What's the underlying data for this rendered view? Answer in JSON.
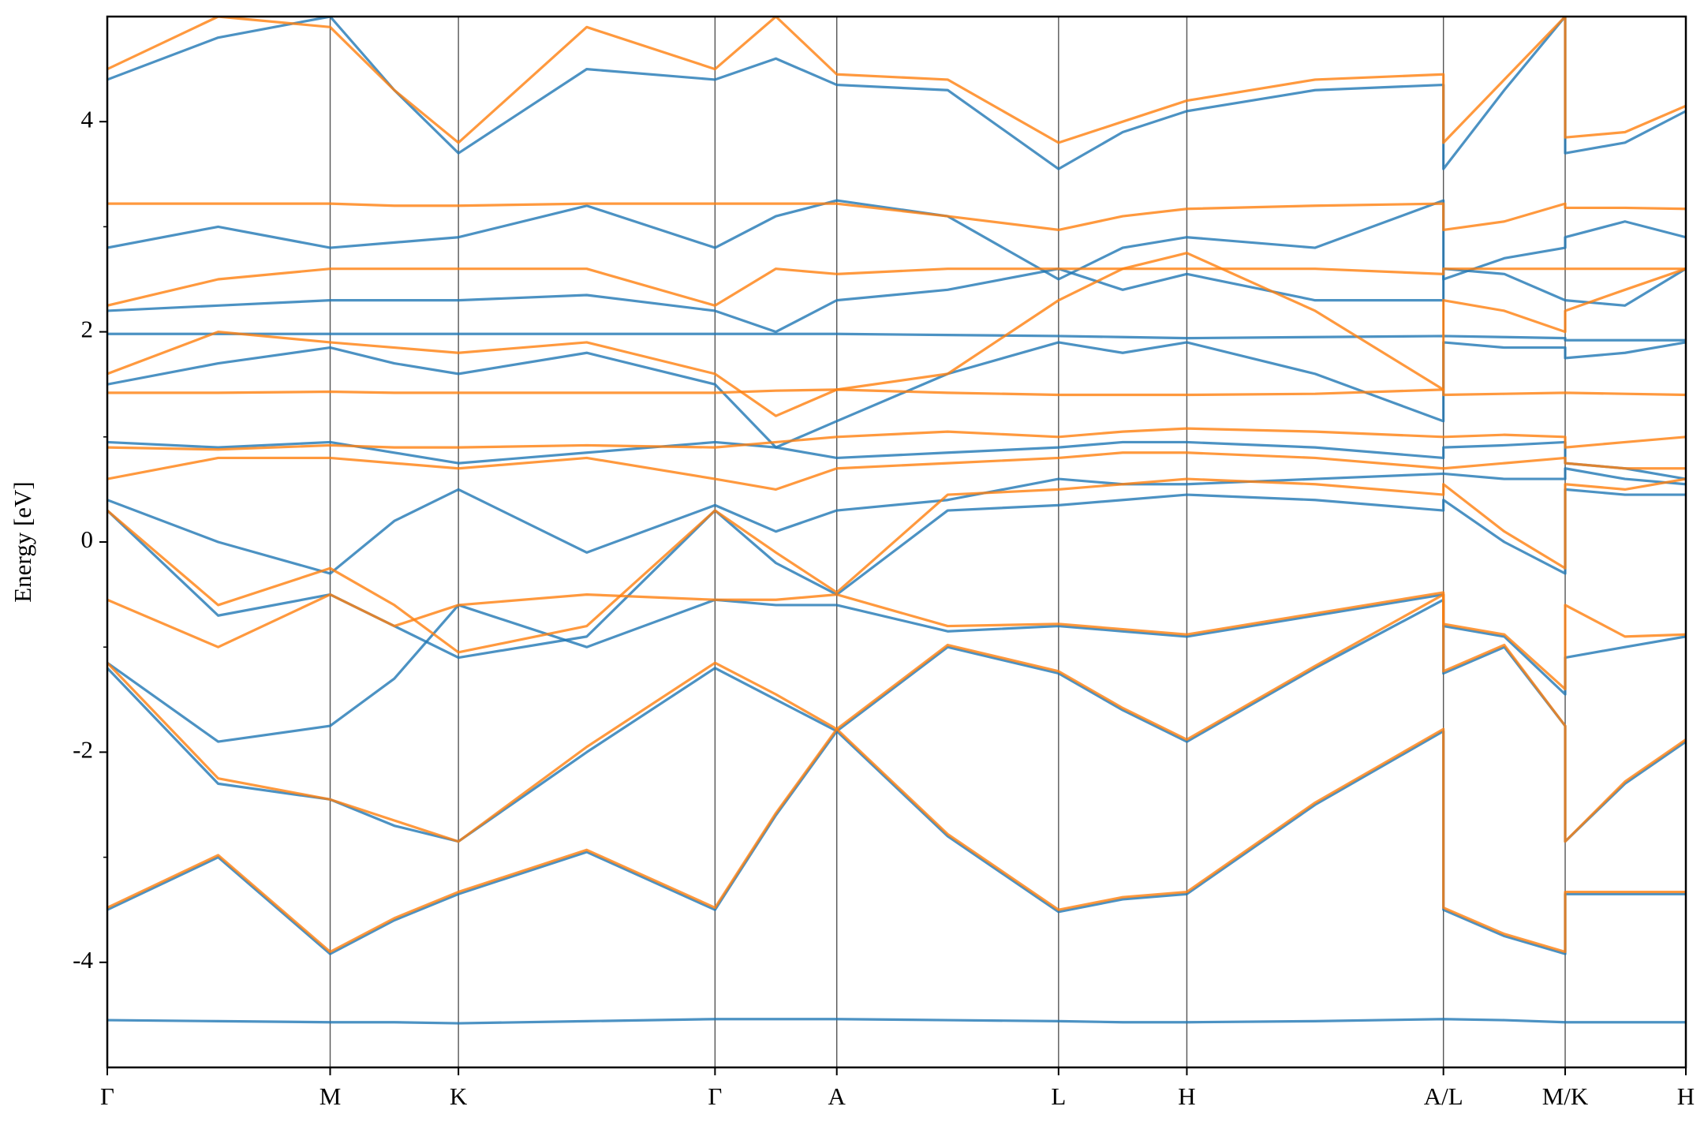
{
  "chart_data": {
    "type": "line",
    "y_label": "Energy [eV]",
    "xlim": [
      0,
      14.52
    ],
    "ylim": [
      -5,
      5
    ],
    "xticks": [
      {
        "value": 0,
        "label": "Γ"
      },
      {
        "value": 2.05,
        "label": "M"
      },
      {
        "value": 3.23,
        "label": "K"
      },
      {
        "value": 5.59,
        "label": "Γ"
      },
      {
        "value": 6.71,
        "label": "A"
      },
      {
        "value": 8.75,
        "label": "L"
      },
      {
        "value": 9.93,
        "label": "H"
      },
      {
        "value": 12.29,
        "label": "A/L"
      },
      {
        "value": 13.41,
        "label": "M/K"
      },
      {
        "value": 14.52,
        "label": "H"
      }
    ],
    "yticks": [
      -4,
      -2,
      0,
      2,
      4
    ],
    "yminorticks": [
      -3,
      -1,
      1,
      3
    ],
    "grid": true,
    "x": [
      0,
      1.02,
      2.05,
      2.64,
      3.23,
      4.41,
      5.59,
      6.15,
      6.71,
      7.73,
      8.75,
      9.34,
      9.93,
      11.11,
      12.29,
      12.29,
      12.85,
      13.41,
      13.41,
      13.96,
      14.52
    ],
    "series": [
      {
        "color": "#1f77b4",
        "values": [
          -4.55,
          -4.56,
          -4.57,
          -4.57,
          -4.58,
          -4.56,
          -4.54,
          -4.54,
          -4.54,
          -4.55,
          -4.56,
          -4.57,
          -4.57,
          -4.56,
          -4.54,
          -4.54,
          -4.55,
          -4.57,
          -4.57,
          -4.57,
          -4.57
        ]
      },
      {
        "color": "#1f77b4",
        "values": [
          -3.5,
          -3.0,
          -3.92,
          -3.6,
          -3.35,
          -2.95,
          -3.5,
          -2.6,
          -1.8,
          -2.8,
          -3.52,
          -3.4,
          -3.35,
          -2.5,
          -1.8,
          -3.5,
          -3.75,
          -3.92,
          -3.35,
          -3.35,
          -3.35
        ]
      },
      {
        "color": "#1f77b4",
        "values": [
          -1.2,
          -2.3,
          -2.45,
          -2.7,
          -2.85,
          -2.0,
          -1.2,
          -1.5,
          -1.8,
          -1.0,
          -1.25,
          -1.6,
          -1.9,
          -1.2,
          -0.55,
          -1.25,
          -1.0,
          -1.75,
          -2.85,
          -2.3,
          -1.9
        ]
      },
      {
        "color": "#1f77b4",
        "values": [
          -1.15,
          -1.9,
          -1.75,
          -1.3,
          -0.6,
          -1.0,
          -0.55,
          -0.6,
          -0.6,
          -0.85,
          -0.8,
          -0.85,
          -0.9,
          -0.7,
          -0.5,
          -0.8,
          -0.9,
          -1.45,
          -1.1,
          -1.0,
          -0.9
        ]
      },
      {
        "color": "#1f77b4",
        "values": [
          0.3,
          -0.7,
          -0.5,
          -0.8,
          -1.1,
          -0.9,
          0.3,
          -0.2,
          -0.5,
          0.3,
          0.35,
          0.4,
          0.45,
          0.4,
          0.3,
          0.4,
          0.0,
          -0.3,
          0.5,
          0.45,
          0.45
        ]
      },
      {
        "color": "#1f77b4",
        "values": [
          0.4,
          0.0,
          -0.3,
          0.2,
          0.5,
          -0.1,
          0.35,
          0.1,
          0.3,
          0.4,
          0.6,
          0.55,
          0.55,
          0.6,
          0.65,
          0.65,
          0.6,
          0.6,
          0.7,
          0.6,
          0.55
        ]
      },
      {
        "color": "#1f77b4",
        "values": [
          0.95,
          0.9,
          0.95,
          0.85,
          0.75,
          0.85,
          0.95,
          0.9,
          0.8,
          0.85,
          0.9,
          0.95,
          0.95,
          0.9,
          0.8,
          0.9,
          0.92,
          0.95,
          0.75,
          0.7,
          0.6
        ]
      },
      {
        "color": "#1f77b4",
        "values": [
          1.5,
          1.7,
          1.85,
          1.7,
          1.6,
          1.8,
          1.5,
          0.9,
          1.15,
          1.6,
          1.9,
          1.8,
          1.9,
          1.6,
          1.15,
          1.9,
          1.85,
          1.85,
          1.75,
          1.8,
          1.9
        ]
      },
      {
        "color": "#1f77b4",
        "values": [
          1.98,
          1.98,
          1.98,
          1.98,
          1.98,
          1.98,
          1.98,
          1.98,
          1.98,
          1.97,
          1.96,
          1.95,
          1.94,
          1.95,
          1.96,
          1.96,
          1.95,
          1.94,
          1.92,
          1.92,
          1.92
        ]
      },
      {
        "color": "#1f77b4",
        "values": [
          2.2,
          2.25,
          2.3,
          2.3,
          2.3,
          2.35,
          2.2,
          2.0,
          2.3,
          2.4,
          2.6,
          2.4,
          2.55,
          2.3,
          2.3,
          2.6,
          2.55,
          2.3,
          2.3,
          2.25,
          2.6
        ]
      },
      {
        "color": "#1f77b4",
        "values": [
          2.8,
          3.0,
          2.8,
          2.85,
          2.9,
          3.2,
          2.8,
          3.1,
          3.25,
          3.1,
          2.5,
          2.8,
          2.9,
          2.8,
          3.25,
          2.5,
          2.7,
          2.8,
          2.9,
          3.05,
          2.9
        ]
      },
      {
        "color": "#1f77b4",
        "values": [
          4.4,
          4.8,
          5.0,
          4.3,
          3.7,
          4.5,
          4.4,
          4.6,
          4.35,
          4.3,
          3.55,
          3.9,
          4.1,
          4.3,
          4.35,
          3.55,
          4.3,
          5.0,
          3.7,
          3.8,
          4.1
        ]
      },
      {
        "color": "#ff7f0e",
        "values": [
          -3.48,
          -2.98,
          -3.9,
          -3.58,
          -3.33,
          -2.93,
          -3.48,
          -2.58,
          -1.78,
          -2.78,
          -3.5,
          -3.38,
          -3.33,
          -2.48,
          -1.78,
          -3.48,
          -3.73,
          -3.9,
          -3.33,
          -3.33,
          -3.33
        ]
      },
      {
        "color": "#ff7f0e",
        "values": [
          -1.15,
          -2.25,
          -2.45,
          -2.65,
          -2.85,
          -1.95,
          -1.15,
          -1.45,
          -1.78,
          -0.98,
          -1.23,
          -1.58,
          -1.88,
          -1.18,
          -0.5,
          -1.23,
          -0.98,
          -1.75,
          -2.85,
          -2.28,
          -1.88
        ]
      },
      {
        "color": "#ff7f0e",
        "values": [
          -0.55,
          -1.0,
          -0.5,
          -0.8,
          -0.6,
          -0.5,
          -0.55,
          -0.55,
          -0.5,
          -0.8,
          -0.78,
          -0.83,
          -0.88,
          -0.68,
          -0.48,
          -0.78,
          -0.88,
          -1.4,
          -0.6,
          -0.9,
          -0.88
        ]
      },
      {
        "color": "#ff7f0e",
        "values": [
          0.3,
          -0.6,
          -0.25,
          -0.6,
          -1.05,
          -0.8,
          0.3,
          -0.1,
          -0.48,
          0.45,
          0.5,
          0.55,
          0.6,
          0.55,
          0.45,
          0.55,
          0.1,
          -0.25,
          0.55,
          0.5,
          0.6
        ]
      },
      {
        "color": "#ff7f0e",
        "values": [
          0.6,
          0.8,
          0.8,
          0.75,
          0.7,
          0.8,
          0.6,
          0.5,
          0.7,
          0.75,
          0.8,
          0.85,
          0.85,
          0.8,
          0.7,
          0.7,
          0.75,
          0.8,
          0.75,
          0.7,
          0.7
        ]
      },
      {
        "color": "#ff7f0e",
        "values": [
          0.9,
          0.88,
          0.92,
          0.9,
          0.9,
          0.92,
          0.9,
          0.95,
          1.0,
          1.05,
          1.0,
          1.05,
          1.08,
          1.05,
          1.0,
          1.0,
          1.02,
          1.0,
          0.9,
          0.95,
          1.0
        ]
      },
      {
        "color": "#ff7f0e",
        "values": [
          1.42,
          1.42,
          1.43,
          1.42,
          1.42,
          1.42,
          1.42,
          1.44,
          1.45,
          1.42,
          1.4,
          1.4,
          1.4,
          1.41,
          1.45,
          1.4,
          1.41,
          1.42,
          1.42,
          1.41,
          1.4
        ]
      },
      {
        "color": "#ff7f0e",
        "values": [
          1.6,
          2.0,
          1.9,
          1.85,
          1.8,
          1.9,
          1.6,
          1.2,
          1.45,
          1.6,
          2.3,
          2.6,
          2.75,
          2.2,
          1.45,
          2.3,
          2.2,
          2.0,
          2.2,
          2.4,
          2.6
        ]
      },
      {
        "color": "#ff7f0e",
        "values": [
          2.25,
          2.5,
          2.6,
          2.6,
          2.6,
          2.6,
          2.25,
          2.6,
          2.55,
          2.6,
          2.6,
          2.6,
          2.6,
          2.6,
          2.55,
          2.6,
          2.6,
          2.6,
          2.6,
          2.6,
          2.6
        ]
      },
      {
        "color": "#ff7f0e",
        "values": [
          3.22,
          3.22,
          3.22,
          3.2,
          3.2,
          3.22,
          3.22,
          3.22,
          3.22,
          3.1,
          2.97,
          3.1,
          3.17,
          3.2,
          3.22,
          2.97,
          3.05,
          3.22,
          3.18,
          3.18,
          3.17
        ]
      },
      {
        "color": "#ff7f0e",
        "values": [
          4.5,
          5.0,
          4.9,
          4.3,
          3.8,
          4.9,
          4.5,
          5.0,
          4.45,
          4.4,
          3.8,
          4.0,
          4.2,
          4.4,
          4.45,
          3.8,
          4.4,
          5.0,
          3.85,
          3.9,
          4.15
        ]
      }
    ]
  }
}
